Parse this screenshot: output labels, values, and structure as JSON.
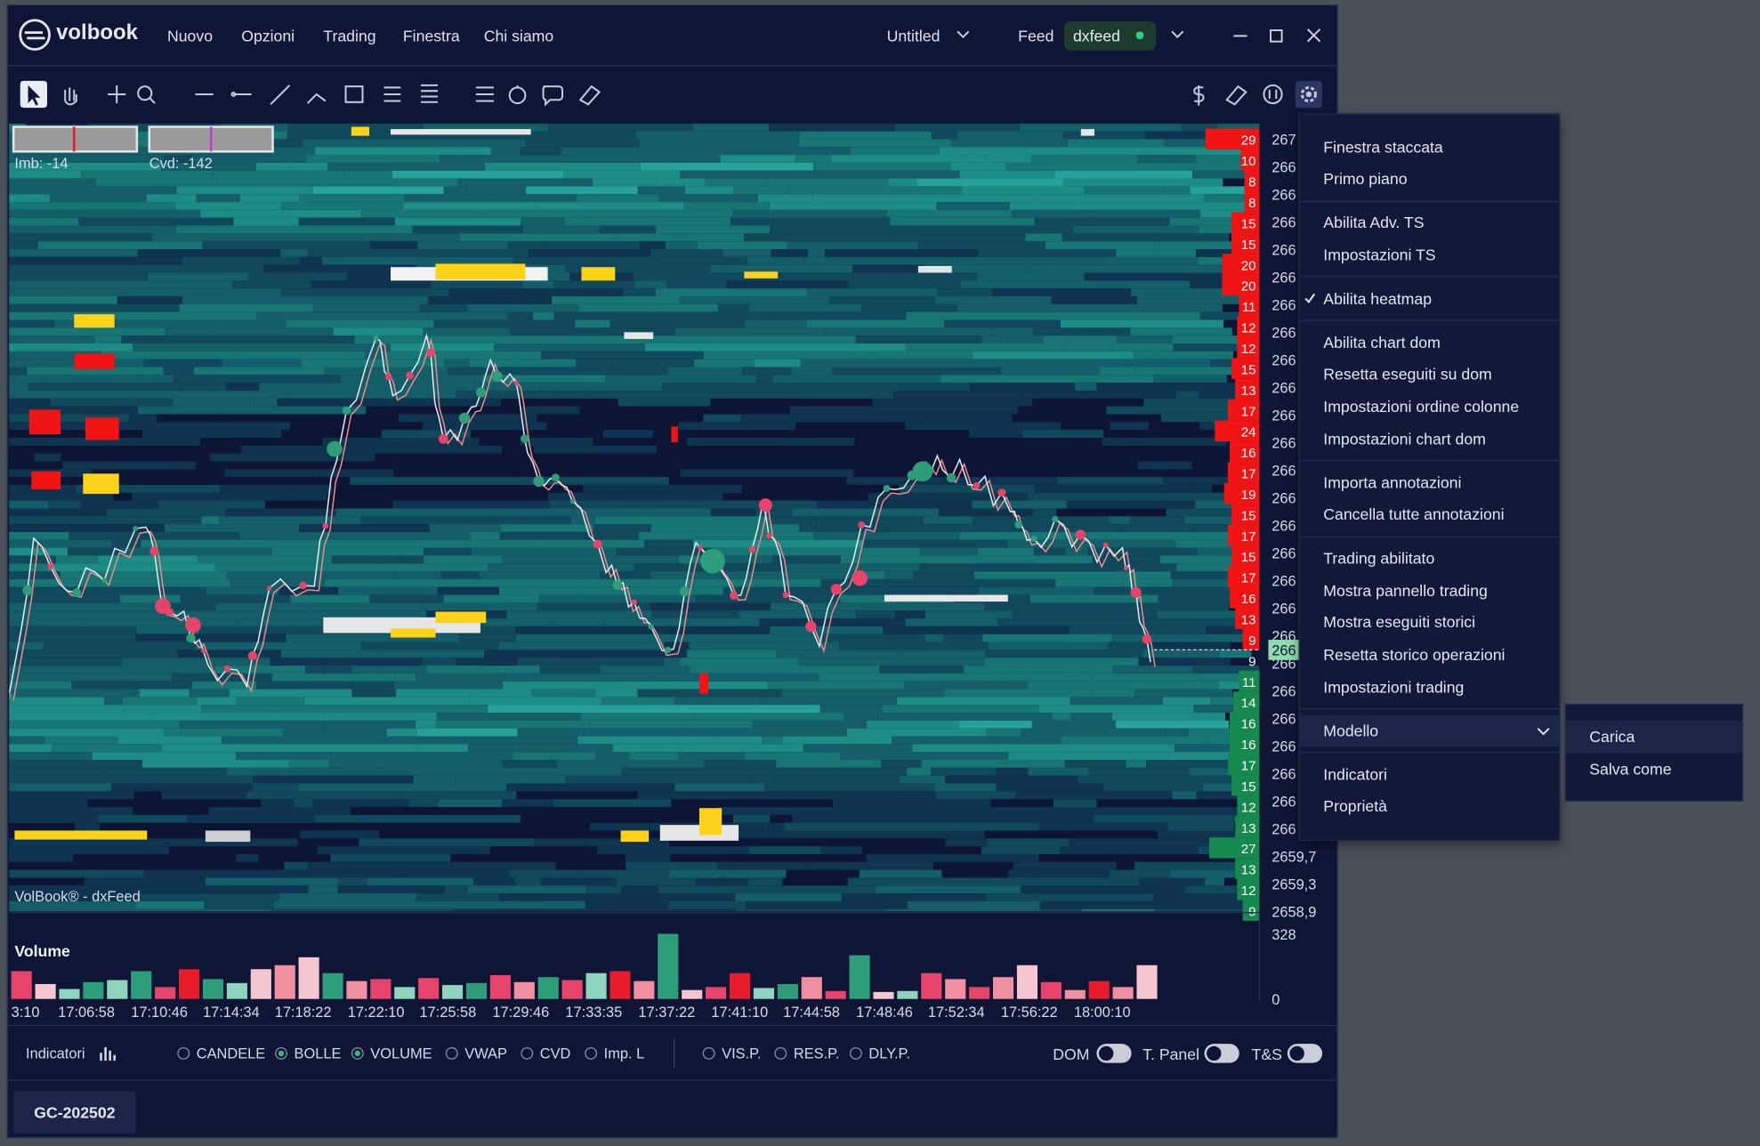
{
  "title_bar": {
    "brand": "volbook",
    "menus": [
      "Nuovo",
      "Opzioni",
      "Trading",
      "Finestra",
      "Chi siamo"
    ],
    "workspace": "Untitled",
    "feed_label": "Feed",
    "feed": "dxfeed"
  },
  "chart": {
    "imbalance": "Imb: -14",
    "cvd": "Cvd: -142",
    "watermark": "VolBook® - dxFeed",
    "price_labels": [
      "267",
      "266",
      "266",
      "266",
      "266",
      "266",
      "266",
      "266",
      "266",
      "266",
      "266",
      "266",
      "266",
      "266",
      "266",
      "266",
      "266",
      "266",
      "266",
      "266",
      "266",
      "266",
      "266",
      "266",
      "266",
      "266",
      "2659,7",
      "2659,3",
      "2658,9"
    ],
    "current_price": "266",
    "dom": {
      "asks": [
        29,
        10,
        8,
        8,
        15,
        15,
        20,
        20,
        11,
        12,
        12,
        15,
        13,
        17,
        24,
        16,
        17,
        19,
        15,
        17,
        15,
        17,
        16,
        13,
        9
      ],
      "last": 9,
      "bids": [
        11,
        14,
        16,
        16,
        17,
        15,
        12,
        13,
        27,
        13,
        12,
        9
      ],
      "ask_color": "#f01414",
      "bid_color": "#168a4e"
    }
  },
  "volume": {
    "title": "Volume",
    "ylim": [
      0,
      328
    ],
    "yticks": [
      0,
      328
    ],
    "values": [
      140,
      75,
      50,
      85,
      95,
      140,
      60,
      150,
      100,
      80,
      150,
      170,
      210,
      130,
      90,
      100,
      60,
      105,
      70,
      80,
      120,
      85,
      110,
      95,
      130,
      140,
      90,
      328,
      45,
      60,
      130,
      55,
      75,
      110,
      40,
      220,
      35,
      40,
      130,
      100,
      60,
      110,
      170,
      85,
      45,
      90,
      60,
      170
    ],
    "colors": [
      "#e8436a",
      "#f5c6d0",
      "#8fd4bf",
      "#2e9e7a",
      "#8fd4bf",
      "#2e9e7a",
      "#e8436a",
      "#e81b2b",
      "#2e9e7a",
      "#8fd4bf",
      "#f5c6d0",
      "#f08fa0",
      "#f5c6d0",
      "#2e9e7a",
      "#f08fa0",
      "#e8436a",
      "#8fd4bf",
      "#e8436a",
      "#8fd4bf",
      "#2e9e7a",
      "#e8436a",
      "#f08fa0",
      "#2e9e7a",
      "#e8436a",
      "#8fd4bf",
      "#e81b2b",
      "#f08fa0",
      "#2e9e7a",
      "#f5c6d0",
      "#e8436a",
      "#e81b2b",
      "#8fd4bf",
      "#2e9e7a",
      "#f08fa0",
      "#e8436a",
      "#2e9e7a",
      "#f5c6d0",
      "#8fd4bf",
      "#e8436a",
      "#f08fa0",
      "#e8436a",
      "#f08fa0",
      "#f5c6d0",
      "#e8436a",
      "#f08fa0",
      "#e81b2b",
      "#f08fa0",
      "#f5c6d0"
    ]
  },
  "time_axis": [
    "3:10",
    "17:06:58",
    "17:10:46",
    "17:14:34",
    "17:18:22",
    "17:22:10",
    "17:25:58",
    "17:29:46",
    "17:33:35",
    "17:37:22",
    "17:41:10",
    "17:44:58",
    "17:48:46",
    "17:52:34",
    "17:56:22",
    "18:00:10"
  ],
  "bottom_bar": {
    "indicators": "Indicatori",
    "options": [
      {
        "label": "CANDELE",
        "on": false
      },
      {
        "label": "BOLLE",
        "on": true
      },
      {
        "label": "VOLUME",
        "on": true
      },
      {
        "label": "VWAP",
        "on": false
      },
      {
        "label": "CVD",
        "on": false
      },
      {
        "label": "Imp. L",
        "on": false
      },
      {
        "label": "VIS.P.",
        "on": false
      },
      {
        "label": "RES.P.",
        "on": false
      },
      {
        "label": "DLY.P.",
        "on": false
      }
    ],
    "toggles": [
      "DOM",
      "T. Panel",
      "T&S"
    ]
  },
  "tab": "GC-202502",
  "context_menu": {
    "groups": [
      [
        {
          "label": "Finestra staccata"
        },
        {
          "label": "Primo piano"
        }
      ],
      [
        {
          "label": "Abilita Adv. TS"
        },
        {
          "label": "Impostazioni TS"
        }
      ],
      [
        {
          "label": "Abilita heatmap",
          "checked": true
        }
      ],
      [
        {
          "label": "Abilita chart dom"
        },
        {
          "label": "Resetta eseguiti su dom"
        },
        {
          "label": "Impostazioni ordine colonne"
        },
        {
          "label": "Impostazioni chart dom"
        }
      ],
      [
        {
          "label": "Importa annotazioni"
        },
        {
          "label": "Cancella tutte annotazioni"
        }
      ],
      [
        {
          "label": "Trading abilitato"
        },
        {
          "label": "Mostra pannello trading"
        },
        {
          "label": "Mostra eseguiti storici"
        },
        {
          "label": "Resetta storico operazioni"
        },
        {
          "label": "Impostazioni trading"
        }
      ],
      [
        {
          "label": "Modello",
          "submenu": [
            "Carica",
            "Salva come"
          ]
        }
      ],
      [
        {
          "label": "Indicatori"
        },
        {
          "label": "Proprietà"
        }
      ]
    ]
  }
}
